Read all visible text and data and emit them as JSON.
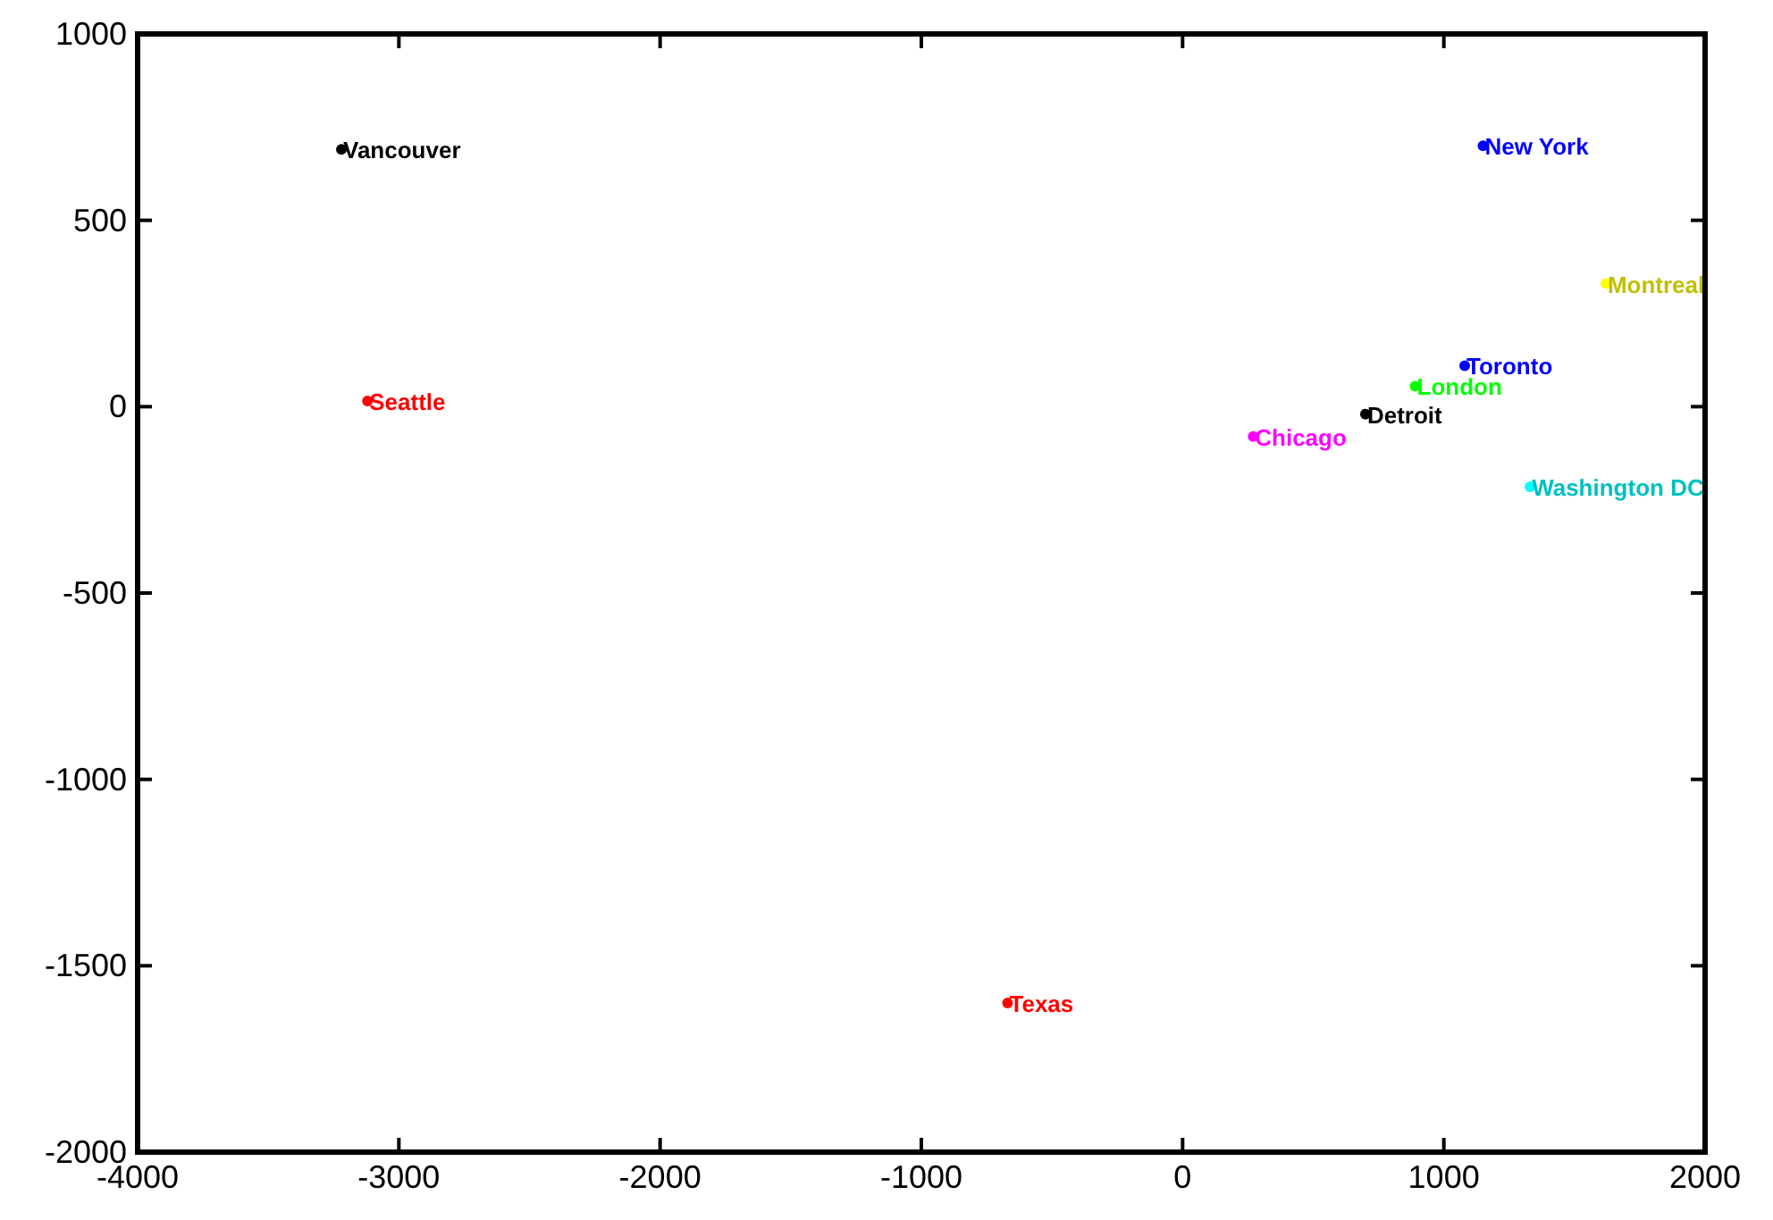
{
  "chart_data": {
    "type": "scatter",
    "xlim": [
      -4000,
      2000
    ],
    "ylim": [
      -2000,
      1000
    ],
    "xticks": [
      -4000,
      -3000,
      -2000,
      -1000,
      0,
      1000,
      2000
    ],
    "yticks": [
      -2000,
      -1500,
      -1000,
      -500,
      0,
      500,
      1000
    ],
    "grid": false,
    "marker": "circle",
    "series": [
      {
        "name": "Vancouver",
        "color": "#000000",
        "x": [
          -3220
        ],
        "values": [
          690
        ]
      },
      {
        "name": "Seattle",
        "color": "#ff0000",
        "x": [
          -3120
        ],
        "values": [
          15
        ]
      },
      {
        "name": "Texas",
        "color": "#ff0000",
        "x": [
          -670
        ],
        "values": [
          -1600
        ]
      },
      {
        "name": "Chicago",
        "color": "#ff00ff",
        "x": [
          270
        ],
        "values": [
          -80
        ]
      },
      {
        "name": "Detroit",
        "color": "#000000",
        "x": [
          700
        ],
        "values": [
          -20
        ]
      },
      {
        "name": "London",
        "color": "#00ff00",
        "x": [
          890
        ],
        "values": [
          55
        ]
      },
      {
        "name": "Toronto",
        "color": "#0000ff",
        "x": [
          1080
        ],
        "values": [
          110
        ]
      },
      {
        "name": "New York",
        "color": "#0000ff",
        "x": [
          1150
        ],
        "values": [
          700
        ]
      },
      {
        "name": "Montreal",
        "color": "#ffff00",
        "x": [
          1620
        ],
        "values": [
          330
        ]
      },
      {
        "name": "Washington DC",
        "color": "#00ffff",
        "x": [
          1330
        ],
        "values": [
          -215
        ]
      }
    ]
  }
}
